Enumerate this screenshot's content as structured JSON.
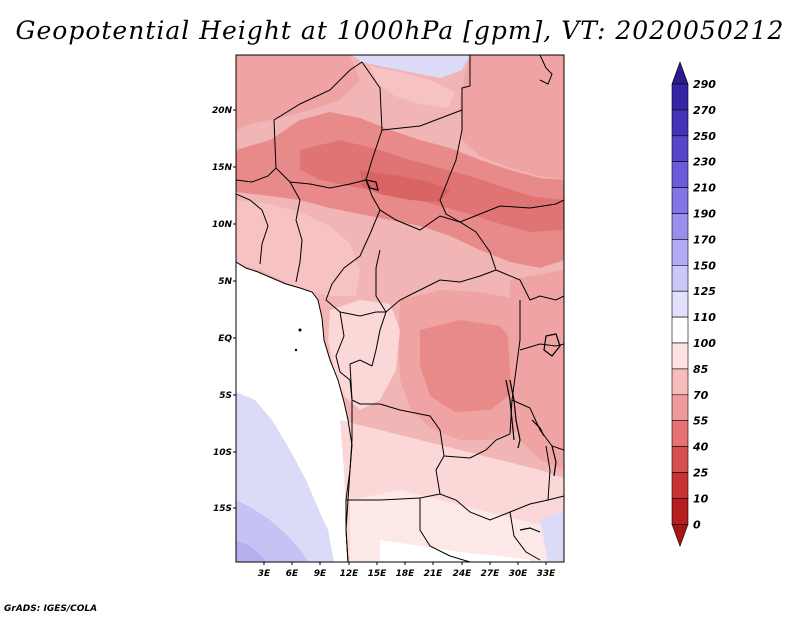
{
  "title": "Geopotential Height at 1000hPa [gpm], VT: 2020050212",
  "credit": "GrADS: IGES/COLA",
  "map": {
    "lat_labels": [
      "20N",
      "15N",
      "10N",
      "5N",
      "EQ",
      "5S",
      "10S",
      "15S"
    ],
    "lon_labels": [
      "3E",
      "6E",
      "9E",
      "12E",
      "15E",
      "18E",
      "21E",
      "24E",
      "27E",
      "30E",
      "33E"
    ]
  },
  "colorbar": {
    "levels": [
      "290",
      "270",
      "250",
      "230",
      "210",
      "190",
      "170",
      "150",
      "125",
      "110",
      "100",
      "85",
      "70",
      "55",
      "40",
      "25",
      "10",
      "0"
    ],
    "colors": [
      "#2a1c8c",
      "#3525a6",
      "#4434b8",
      "#5546c8",
      "#6a5cd8",
      "#8176e4",
      "#9990ee",
      "#b2abf4",
      "#cbc7f9",
      "#e2e0fc",
      "#ffffff",
      "#fde2e2",
      "#f7bdbd",
      "#ef9a9a",
      "#e57373",
      "#d65050",
      "#c93232",
      "#b51e1e",
      "#a61616"
    ],
    "palette": {
      "ocean_white": "#ffffff",
      "light_blue": "#dcdbf7",
      "mid_blue": "#c6c2f3",
      "lav": "#b6b0f0",
      "pink_light": "#fbd7d7",
      "pink": "#f6c2c2",
      "salmon": "#efa3a3",
      "red_mid": "#e88a8a",
      "red_dark": "#e07373",
      "red_deep": "#d96464"
    }
  }
}
